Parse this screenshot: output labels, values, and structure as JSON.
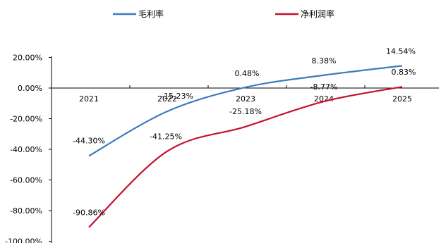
{
  "chart_data": {
    "type": "line",
    "categories": [
      "2021",
      "2022",
      "2023",
      "2024",
      "2025"
    ],
    "series": [
      {
        "name": "毛利率",
        "color": "#3c7bbf",
        "values": [
          -44.3,
          -15.23,
          0.48,
          8.38,
          14.54
        ],
        "labels": [
          "-44.30%",
          "-15.23%",
          "0.48%",
          "8.38%",
          "14.54%"
        ]
      },
      {
        "name": "净利润率",
        "color": "#c8102e",
        "values": [
          -90.86,
          -41.25,
          -25.18,
          -8.77,
          0.83
        ],
        "labels": [
          "-90.86%",
          "-41.25%",
          "-25.18%",
          "-8.77%",
          "0.83%"
        ]
      }
    ],
    "y_ticks": [
      "20.00%",
      "0.00%",
      "-20.00%",
      "-40.00%",
      "-60.00%",
      "-80.00%",
      "-100.00%"
    ],
    "y_tick_values": [
      20,
      0,
      -20,
      -40,
      -60,
      -80,
      -100
    ],
    "ylim": [
      -100,
      20
    ],
    "legend": "top",
    "grid": false,
    "title": "",
    "xlabel": "",
    "ylabel": ""
  }
}
